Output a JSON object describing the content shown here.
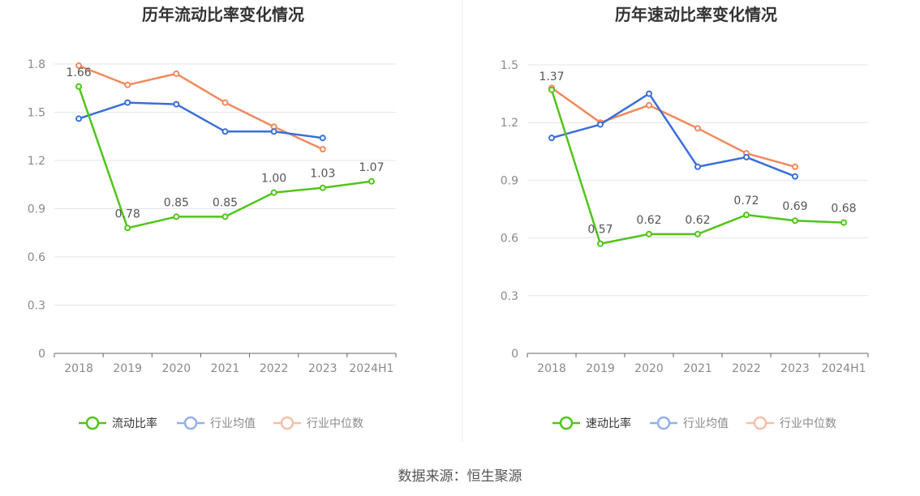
{
  "source": "数据来源：恒生聚源",
  "chart_data": [
    {
      "type": "line",
      "title": "历年流动比率变化情况",
      "categories": [
        "2018",
        "2019",
        "2020",
        "2021",
        "2022",
        "2023",
        "2024H1"
      ],
      "ylim": [
        0,
        1.8
      ],
      "yticks": [
        "0",
        "0.3",
        "0.6",
        "0.9",
        "1.2",
        "1.5",
        "1.8"
      ],
      "grid": true,
      "legend_position": "bottom",
      "series": [
        {
          "name": "流动比率",
          "color": "#52c41a",
          "values": [
            1.66,
            0.78,
            0.85,
            0.85,
            1.0,
            1.03,
            1.07
          ],
          "labels": [
            "1.66",
            "0.78",
            "0.85",
            "0.85",
            "1.00",
            "1.03",
            "1.07"
          ]
        },
        {
          "name": "行业均值",
          "color": "#3a6fd8",
          "values": [
            1.46,
            1.56,
            1.55,
            1.38,
            1.38,
            1.34,
            null
          ]
        },
        {
          "name": "行业中位数",
          "color": "#f08a5d",
          "values": [
            1.79,
            1.67,
            1.74,
            1.56,
            1.41,
            1.27,
            null
          ]
        }
      ]
    },
    {
      "type": "line",
      "title": "历年速动比率变化情况",
      "categories": [
        "2018",
        "2019",
        "2020",
        "2021",
        "2022",
        "2023",
        "2024H1"
      ],
      "ylim": [
        0,
        1.5
      ],
      "yticks": [
        "0",
        "0.3",
        "0.6",
        "0.9",
        "1.2",
        "1.5"
      ],
      "grid": true,
      "legend_position": "bottom",
      "series": [
        {
          "name": "速动比率",
          "color": "#52c41a",
          "values": [
            1.37,
            0.57,
            0.62,
            0.62,
            0.72,
            0.69,
            0.68
          ],
          "labels": [
            "1.37",
            "0.57",
            "0.62",
            "0.62",
            "0.72",
            "0.69",
            "0.68"
          ]
        },
        {
          "name": "行业均值",
          "color": "#3a6fd8",
          "values": [
            1.12,
            1.19,
            1.35,
            0.97,
            1.02,
            0.92,
            null
          ]
        },
        {
          "name": "行业中位数",
          "color": "#f08a5d",
          "values": [
            1.38,
            1.2,
            1.29,
            1.17,
            1.04,
            0.97,
            null
          ]
        }
      ]
    }
  ]
}
